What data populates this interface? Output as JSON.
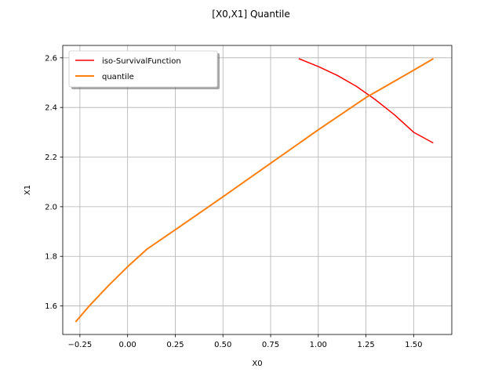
{
  "chart_data": {
    "type": "line",
    "title": "[X0,X1] Quantile",
    "xlabel": "X0",
    "ylabel": "X1",
    "xlim": [
      -0.34,
      1.7
    ],
    "ylim": [
      1.485,
      2.65
    ],
    "xticks": [
      -0.25,
      0.0,
      0.25,
      0.5,
      0.75,
      1.0,
      1.25,
      1.5
    ],
    "xtick_labels": [
      "−0.25",
      "0.00",
      "0.25",
      "0.50",
      "0.75",
      "1.00",
      "1.25",
      "1.50"
    ],
    "yticks": [
      1.6,
      1.8,
      2.0,
      2.2,
      2.4,
      2.6
    ],
    "ytick_labels": [
      "1.6",
      "1.8",
      "2.0",
      "2.2",
      "2.4",
      "2.6"
    ],
    "grid": true,
    "legend_position": "upper-left",
    "series": [
      {
        "name": "iso-SurvivalFunction",
        "color": "#ff0000",
        "x": [
          0.9,
          1.0,
          1.1,
          1.2,
          1.3,
          1.4,
          1.5,
          1.6
        ],
        "y": [
          2.596,
          2.565,
          2.529,
          2.485,
          2.431,
          2.37,
          2.3,
          2.258
        ]
      },
      {
        "name": "quantile",
        "color": "#ff7f0e",
        "x": [
          -0.27,
          -0.2,
          -0.1,
          0.0,
          0.1,
          0.25,
          0.5,
          0.75,
          1.0,
          1.25,
          1.5,
          1.6
        ],
        "y": [
          1.538,
          1.601,
          1.682,
          1.758,
          1.828,
          1.907,
          2.04,
          2.175,
          2.31,
          2.44,
          2.55,
          2.595
        ]
      }
    ]
  }
}
